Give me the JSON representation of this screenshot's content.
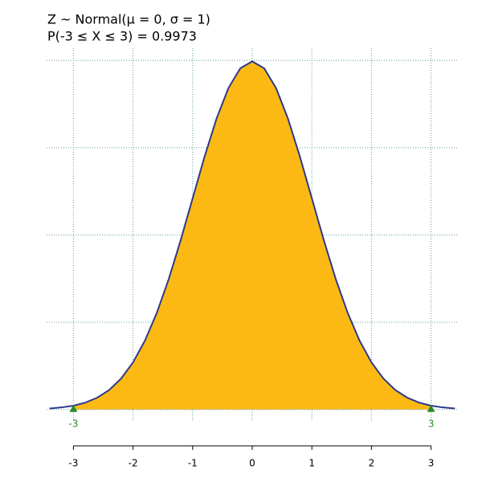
{
  "chart_data": {
    "type": "area",
    "title": "Z ~ Normal(μ = 0, σ = 1)",
    "subtitle": "P(-3 ≤ X ≤ 3) = 0.9973",
    "x": [
      -3.4,
      -3.2,
      -3.0,
      -2.8,
      -2.6,
      -2.4,
      -2.2,
      -2.0,
      -1.8,
      -1.6,
      -1.4,
      -1.2,
      -1.0,
      -0.8,
      -0.6,
      -0.4,
      -0.2,
      0,
      0.2,
      0.4,
      0.6,
      0.8,
      1.0,
      1.2,
      1.4,
      1.6,
      1.8,
      2.0,
      2.2,
      2.4,
      2.6,
      2.8,
      3.0,
      3.2,
      3.4
    ],
    "values": [
      0.0012,
      0.0024,
      0.0044,
      0.0079,
      0.0136,
      0.0224,
      0.0355,
      0.054,
      0.079,
      0.1109,
      0.1497,
      0.1942,
      0.242,
      0.2897,
      0.3332,
      0.3683,
      0.391,
      0.3989,
      0.391,
      0.3683,
      0.3332,
      0.2897,
      0.242,
      0.1942,
      0.1497,
      0.1109,
      0.079,
      0.054,
      0.0355,
      0.0224,
      0.0136,
      0.0079,
      0.0044,
      0.0024,
      0.0012
    ],
    "shade_range": [
      -3,
      3
    ],
    "line_color": "#2b3a8c",
    "fill_color": "#fdb913",
    "marker_color": "#2a8a2a",
    "grid_color": "#5f9ea0",
    "xlim": [
      -3.45,
      3.45
    ],
    "ylim": [
      -0.014,
      0.414
    ],
    "xticks": [
      -3,
      -2,
      -1,
      0,
      1,
      2,
      3
    ],
    "yticks": [
      0,
      0.1,
      0.2,
      0.3,
      0.4
    ],
    "grid": true
  }
}
